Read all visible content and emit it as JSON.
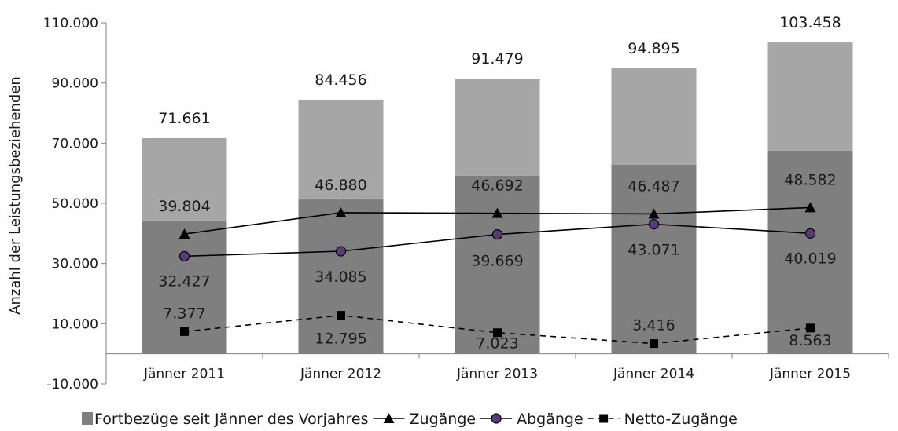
{
  "chart_data": {
    "type": "bar",
    "categories": [
      "Jänner 2011",
      "Jänner 2012",
      "Jänner 2013",
      "Jänner 2014",
      "Jänner 2015"
    ],
    "ylabel": "Anzahl der Leistungsbeziehenden",
    "ylim": [
      -10000,
      110000
    ],
    "yticks": [
      {
        "value": -10000,
        "label": "-10.000"
      },
      {
        "value": 10000,
        "label": "10.000"
      },
      {
        "value": 30000,
        "label": "30.000"
      },
      {
        "value": 50000,
        "label": "50.000"
      },
      {
        "value": 70000,
        "label": "70.000"
      },
      {
        "value": 90000,
        "label": "90.000"
      },
      {
        "value": 110000,
        "label": "110.000"
      }
    ],
    "grid": false,
    "legend_position": "bottom",
    "bars": {
      "base_name": "Fortbezüge seit Jänner des Vorjahres",
      "base_values": [
        44000,
        51600,
        59200,
        62800,
        67500
      ],
      "totals": [
        71661,
        84456,
        91479,
        94895,
        103458
      ],
      "total_labels": [
        "71.661",
        "84.456",
        "91.479",
        "94.895",
        "103.458"
      ],
      "colors": {
        "base": "#7f7f7f",
        "top": "#a6a6a6"
      }
    },
    "series": [
      {
        "name": "Zugänge",
        "style": "solid",
        "marker": "triangle",
        "values": [
          39804,
          46880,
          46692,
          46487,
          48582
        ],
        "labels": [
          "39.804",
          "46.880",
          "46.692",
          "46.487",
          "48.582"
        ]
      },
      {
        "name": "Abgänge",
        "style": "solid",
        "marker": "circle",
        "marker_color": "#5b3a7a",
        "values": [
          32427,
          34085,
          39669,
          43071,
          40019
        ],
        "labels": [
          "32.427",
          "34.085",
          "39.669",
          "43.071",
          "40.019"
        ]
      },
      {
        "name": "Netto-Zugänge",
        "style": "dashed",
        "marker": "square",
        "values": [
          7377,
          12795,
          7023,
          3416,
          8563
        ],
        "labels": [
          "7.377",
          "12.795",
          "7.023",
          "3.416",
          "8.563"
        ]
      }
    ]
  }
}
